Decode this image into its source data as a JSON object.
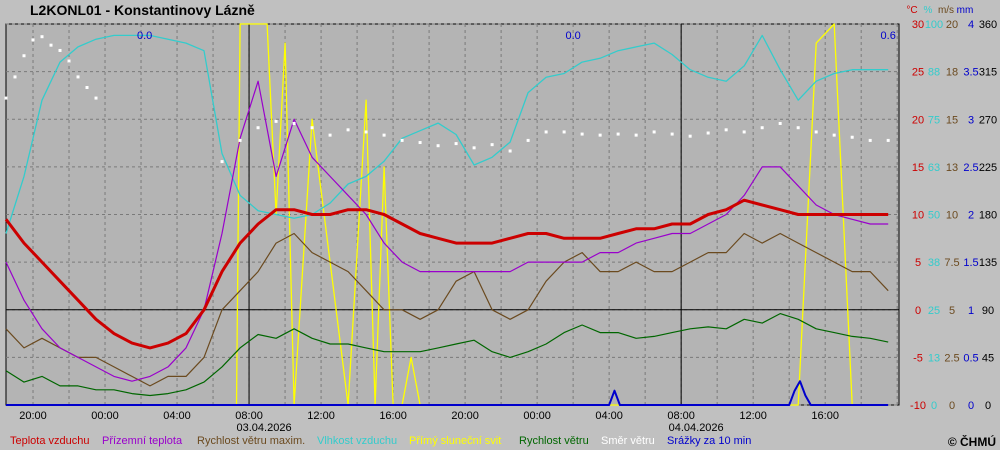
{
  "station_title": "L2KONL01 - Konstantinovy Lázně",
  "copyright": "© ČHMÚ",
  "colors": {
    "background": "#c0c0c0",
    "plot_bg": "#b4b4b4",
    "grid": "#7a7a7a",
    "temperature": "#cc0000",
    "ground_temp": "#9900cc",
    "wind_gust": "#6b4a1f",
    "humidity": "#33cccc",
    "sunshine": "#ffff00",
    "wind_speed": "#006600",
    "wind_dir": "#ffffff",
    "precip": "#0000cc"
  },
  "chart_data": {
    "type": "line",
    "title": "L2KONL01 - Konstantinovy Lázně",
    "x_ticks": [
      "20:00",
      "00:00",
      "04:00",
      "08:00",
      "12:00",
      "16:00",
      "20:00",
      "00:00",
      "04:00",
      "08:00",
      "12:00",
      "16:00"
    ],
    "date_labels": [
      "03.04.2026",
      "04.04.2026"
    ],
    "precip_totals": [
      "0.0",
      "0.0",
      "0.6"
    ],
    "axes": {
      "temp": {
        "unit": "°C",
        "ticks": [
          "30",
          "25",
          "20",
          "15",
          "10",
          "5",
          "0",
          "-5",
          "-10"
        ],
        "range": [
          -10,
          30
        ]
      },
      "humidity": {
        "unit": "%",
        "ticks": [
          "100",
          "88",
          "75",
          "63",
          "50",
          "38",
          "25",
          "13",
          "0"
        ],
        "range": [
          0,
          100
        ]
      },
      "wind": {
        "unit": "m/s",
        "ticks": [
          "20",
          "18",
          "15",
          "13",
          "10",
          "7.5",
          "5",
          "2.5",
          "0"
        ],
        "range": [
          0,
          20
        ]
      },
      "precip": {
        "unit": "mm",
        "ticks": [
          "4",
          "3.5",
          "3",
          "2.5",
          "2",
          "1.5",
          "1",
          "0.5",
          "0"
        ],
        "range": [
          0,
          4
        ]
      },
      "direction": {
        "unit": "",
        "ticks": [
          "360",
          "315",
          "270",
          "225",
          "180",
          "135",
          "90",
          "45",
          "0"
        ],
        "range": [
          0,
          360
        ]
      }
    },
    "legend": [
      {
        "name": "Teplota vzduchu",
        "key": "temperature"
      },
      {
        "name": "Přízemní teplota",
        "key": "ground_temp"
      },
      {
        "name": "Rychlost větru maxim.",
        "key": "wind_gust"
      },
      {
        "name": "Vlhkost vzduchu",
        "key": "humidity"
      },
      {
        "name": "Přímý sluneční svit",
        "key": "sunshine"
      },
      {
        "name": "Rychlost větru",
        "key": "wind_speed"
      },
      {
        "name": "Směr větru",
        "key": "wind_dir"
      },
      {
        "name": "Srážky za 10 min",
        "key": "precip"
      }
    ],
    "series": [
      {
        "key": "temperature",
        "axis": "temp",
        "hours": [
          0,
          1,
          2,
          3,
          4,
          5,
          6,
          7,
          8,
          9,
          10,
          11,
          12,
          13,
          14,
          15,
          16,
          17,
          18,
          19,
          20,
          21,
          22,
          23,
          24,
          25,
          26,
          27,
          28,
          29,
          30,
          31,
          32,
          33,
          34,
          35,
          36,
          37,
          38,
          39,
          40,
          41,
          42,
          43,
          44,
          45,
          46,
          47,
          48,
          49
        ],
        "values": [
          9.5,
          7,
          5,
          3,
          1,
          -1,
          -2.5,
          -3.5,
          -4,
          -3.5,
          -2.5,
          0,
          4,
          7,
          9,
          10.5,
          10.5,
          10,
          10,
          10.5,
          10.5,
          10,
          9,
          8,
          7.5,
          7,
          7,
          7,
          7.5,
          8,
          8,
          7.5,
          7.5,
          7.5,
          8,
          8.5,
          8.5,
          9,
          9,
          10,
          10.5,
          11.5,
          11,
          10.5,
          10,
          10,
          10,
          10,
          10,
          10
        ]
      },
      {
        "key": "ground_temp",
        "axis": "temp",
        "hours": [
          0,
          1,
          2,
          3,
          4,
          5,
          6,
          7,
          8,
          9,
          10,
          11,
          12,
          13,
          14,
          15,
          16,
          17,
          18,
          19,
          20,
          21,
          22,
          23,
          24,
          25,
          26,
          27,
          28,
          29,
          30,
          31,
          32,
          33,
          34,
          35,
          36,
          37,
          38,
          39,
          40,
          41,
          42,
          43,
          44,
          45,
          46,
          47,
          48,
          49
        ],
        "values": [
          5,
          1,
          -2,
          -4,
          -5,
          -6,
          -7,
          -7.5,
          -7,
          -6,
          -4,
          0,
          8,
          18,
          24,
          14,
          20,
          16,
          14,
          12,
          10,
          7,
          5,
          4,
          4,
          4,
          4,
          4,
          4,
          5,
          5,
          5,
          5,
          6,
          6,
          7,
          7.5,
          8,
          8,
          9,
          10,
          12,
          15,
          15,
          13,
          11,
          10,
          9.5,
          9,
          9
        ]
      },
      {
        "key": "wind_gust",
        "axis": "wind",
        "hours": [
          0,
          1,
          2,
          3,
          4,
          5,
          6,
          7,
          8,
          9,
          10,
          11,
          12,
          13,
          14,
          15,
          16,
          17,
          18,
          19,
          20,
          21,
          22,
          23,
          24,
          25,
          26,
          27,
          28,
          29,
          30,
          31,
          32,
          33,
          34,
          35,
          36,
          37,
          38,
          39,
          40,
          41,
          42,
          43,
          44,
          45,
          46,
          47,
          48,
          49
        ],
        "values": [
          4,
          3,
          3.5,
          3,
          2.5,
          2.5,
          2,
          1.5,
          1,
          1.5,
          1.5,
          2.5,
          5,
          6,
          7,
          8.5,
          9,
          8,
          7.5,
          7,
          6,
          5,
          5,
          4.5,
          5,
          6.5,
          7,
          5,
          4.5,
          5,
          6.5,
          7.5,
          8,
          7,
          7,
          7.5,
          7,
          7,
          7.5,
          8,
          8,
          9,
          8.5,
          9,
          8.5,
          8,
          7.5,
          7,
          7,
          6
        ]
      },
      {
        "key": "humidity",
        "axis": "humidity",
        "hours": [
          0,
          1,
          2,
          3,
          4,
          5,
          6,
          7,
          8,
          9,
          10,
          11,
          12,
          13,
          14,
          15,
          16,
          17,
          18,
          19,
          20,
          21,
          22,
          23,
          24,
          25,
          26,
          27,
          28,
          29,
          30,
          31,
          32,
          33,
          34,
          35,
          36,
          37,
          38,
          39,
          40,
          41,
          42,
          43,
          44,
          45,
          46,
          47,
          48,
          49
        ],
        "values": [
          45,
          60,
          80,
          90,
          94,
          96,
          97,
          97,
          97,
          96,
          95,
          93,
          66,
          55,
          51,
          50,
          49,
          50,
          53,
          58,
          60,
          64,
          70,
          72,
          74,
          71,
          63,
          65,
          69,
          82,
          86,
          87,
          90,
          91,
          93,
          94,
          95,
          92,
          88,
          86,
          85,
          89,
          97,
          88,
          80,
          85,
          87,
          88,
          88,
          88
        ]
      },
      {
        "key": "wind_speed",
        "axis": "wind",
        "hours": [
          0,
          1,
          2,
          3,
          4,
          5,
          6,
          7,
          8,
          9,
          10,
          11,
          12,
          13,
          14,
          15,
          16,
          17,
          18,
          19,
          20,
          21,
          22,
          23,
          24,
          25,
          26,
          27,
          28,
          29,
          30,
          31,
          32,
          33,
          34,
          35,
          36,
          37,
          38,
          39,
          40,
          41,
          42,
          43,
          44,
          45,
          46,
          47,
          48,
          49
        ],
        "values": [
          1.8,
          1.2,
          1.5,
          1,
          1,
          0.8,
          0.8,
          0.6,
          0.5,
          0.6,
          0.8,
          1.2,
          2,
          3,
          3.7,
          3.5,
          4,
          3.5,
          3.2,
          3.2,
          3,
          2.8,
          2.8,
          2.8,
          3,
          3.2,
          3.4,
          2.8,
          2.5,
          2.8,
          3.2,
          3.8,
          4.2,
          3.8,
          3.8,
          3.5,
          3.6,
          3.8,
          4,
          4.1,
          4,
          4.5,
          4.3,
          4.8,
          4.5,
          4,
          3.8,
          3.6,
          3.5,
          3.3
        ]
      },
      {
        "key": "wind_dir",
        "axis": "direction",
        "hours": [
          0,
          0.5,
          1,
          1.5,
          2,
          2.5,
          3,
          3.5,
          4,
          4.5,
          5,
          12,
          13,
          14,
          15,
          16,
          17,
          18,
          19,
          20,
          21,
          22,
          23,
          24,
          25,
          26,
          27,
          28,
          29,
          30,
          31,
          32,
          33,
          34,
          35,
          36,
          37,
          38,
          39,
          40,
          41,
          42,
          43,
          44,
          45,
          46,
          47,
          48,
          49
        ],
        "values": [
          290,
          310,
          330,
          345,
          348,
          340,
          335,
          325,
          310,
          300,
          290,
          230,
          250,
          262,
          268,
          266,
          262,
          255,
          260,
          258,
          255,
          250,
          248,
          245,
          247,
          243,
          246,
          240,
          250,
          258,
          258,
          256,
          255,
          256,
          255,
          258,
          256,
          254,
          257,
          260,
          258,
          262,
          266,
          262,
          258,
          255,
          253,
          250,
          250
        ]
      },
      {
        "key": "sunshine",
        "axis": "temp",
        "hours": [
          0,
          12.8,
          13,
          13.5,
          14,
          14.5,
          15,
          15.5,
          16,
          17,
          18,
          19,
          20,
          20.5,
          21,
          21.5,
          22,
          22.5,
          23,
          24,
          25,
          26,
          27,
          28,
          29,
          30,
          31,
          32,
          33,
          34,
          35,
          36,
          37,
          38,
          39,
          40,
          41,
          42,
          43,
          44,
          45,
          46,
          47,
          48,
          49
        ],
        "values": [
          -10,
          -10,
          30,
          30,
          30,
          30,
          10,
          28,
          -10,
          20,
          5,
          -10,
          22,
          -10,
          15,
          -10,
          -10,
          -5,
          -10,
          -10,
          -10,
          -10,
          -10,
          -10,
          -10,
          -10,
          -10,
          -10,
          -10,
          -10,
          -10,
          -10,
          -10,
          -10,
          -10,
          -10,
          -10,
          -10,
          -10,
          -10,
          28,
          30,
          -10,
          -10,
          -10
        ]
      },
      {
        "key": "precip",
        "axis": "precip",
        "hours": [
          0,
          33.5,
          33.8,
          34.1,
          34.4,
          43.5,
          43.8,
          44.1,
          44.4,
          44.7,
          49
        ],
        "values": [
          0,
          0,
          0.15,
          0,
          0,
          0,
          0.15,
          0.25,
          0.1,
          0,
          0
        ]
      }
    ]
  }
}
